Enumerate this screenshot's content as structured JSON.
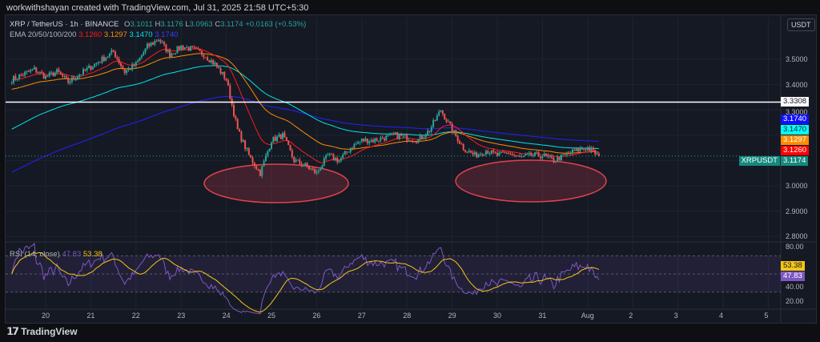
{
  "header": {
    "credit": "workwithshayan created with TradingView.com, Jul 31, 2025 21:58 UTC+5:30"
  },
  "legend": {
    "symbol": "XRP / TetherUS · 1h · BINANCE",
    "o_label": "O",
    "o": "3.1011",
    "h_label": "H",
    "h": "3.1176",
    "l_label": "L",
    "l": "3.0963",
    "c_label": "C",
    "c": "3.1174",
    "change": "+0.0163 (+0.53%)",
    "ema_label": "EMA 20/50/100/200",
    "ema20": "3.1260",
    "ema50": "3.1297",
    "ema100": "3.1470",
    "ema200": "3.1740",
    "rsi_label": "RSI (14, close)",
    "rsi": "47.83",
    "rsi_ma": "53.38"
  },
  "axis": {
    "currency_button": "USDT",
    "price_labels": [
      "3.5000",
      "3.4000",
      "3.3000",
      "3.0000",
      "2.9000",
      "2.8000"
    ],
    "rsi_labels": [
      "80.00",
      "40.00",
      "20.00"
    ],
    "date_labels": [
      "20",
      "21",
      "22",
      "23",
      "24",
      "25",
      "26",
      "27",
      "28",
      "29",
      "30",
      "31",
      "Aug",
      "2",
      "3",
      "4",
      "5"
    ],
    "tags": {
      "level": "3.3308",
      "ema200": "3.1740",
      "ema100": "3.1470",
      "ema50": "3.1297",
      "ema20": "3.1260",
      "symbol": "XRPUSDT",
      "last": "3.1174",
      "rsi_ma": "53.38",
      "rsi": "47.83"
    }
  },
  "colors": {
    "up": "#26a69a",
    "down": "#ef5350",
    "ema20": "#ff1a1a",
    "ema50": "#ff8c00",
    "ema100": "#00e5e5",
    "ema200": "#2222ff",
    "rsi": "#7e57c2",
    "rsi_ma": "#f5c518",
    "ellipse": "#e0424f"
  },
  "footer": {
    "brand": "TradingView"
  },
  "chart_data": {
    "type": "candlestick",
    "timeframe": "1h",
    "closes_6h": {
      "start": "Jul 19 06:00",
      "values": [
        3.42,
        3.44,
        3.46,
        3.43,
        3.45,
        3.41,
        3.44,
        3.47,
        3.5,
        3.53,
        3.45,
        3.48,
        3.55,
        3.58,
        3.52,
        3.55,
        3.54,
        3.52,
        3.48,
        3.42,
        3.22,
        3.12,
        3.05,
        3.18,
        3.2,
        3.1,
        3.08,
        3.05,
        3.12,
        3.1,
        3.15,
        3.18,
        3.18,
        3.19,
        3.2,
        3.19,
        3.18,
        3.22,
        3.3,
        3.22,
        3.15,
        3.12,
        3.14,
        3.12,
        3.13,
        3.11,
        3.12,
        3.12,
        3.1,
        3.12,
        3.14,
        3.15,
        3.1174
      ]
    },
    "horizontal_level": 3.3308,
    "y_range": [
      2.78,
      3.66
    ],
    "rsi_range": [
      15,
      85
    ],
    "rsi_bands": [
      70,
      30
    ]
  }
}
